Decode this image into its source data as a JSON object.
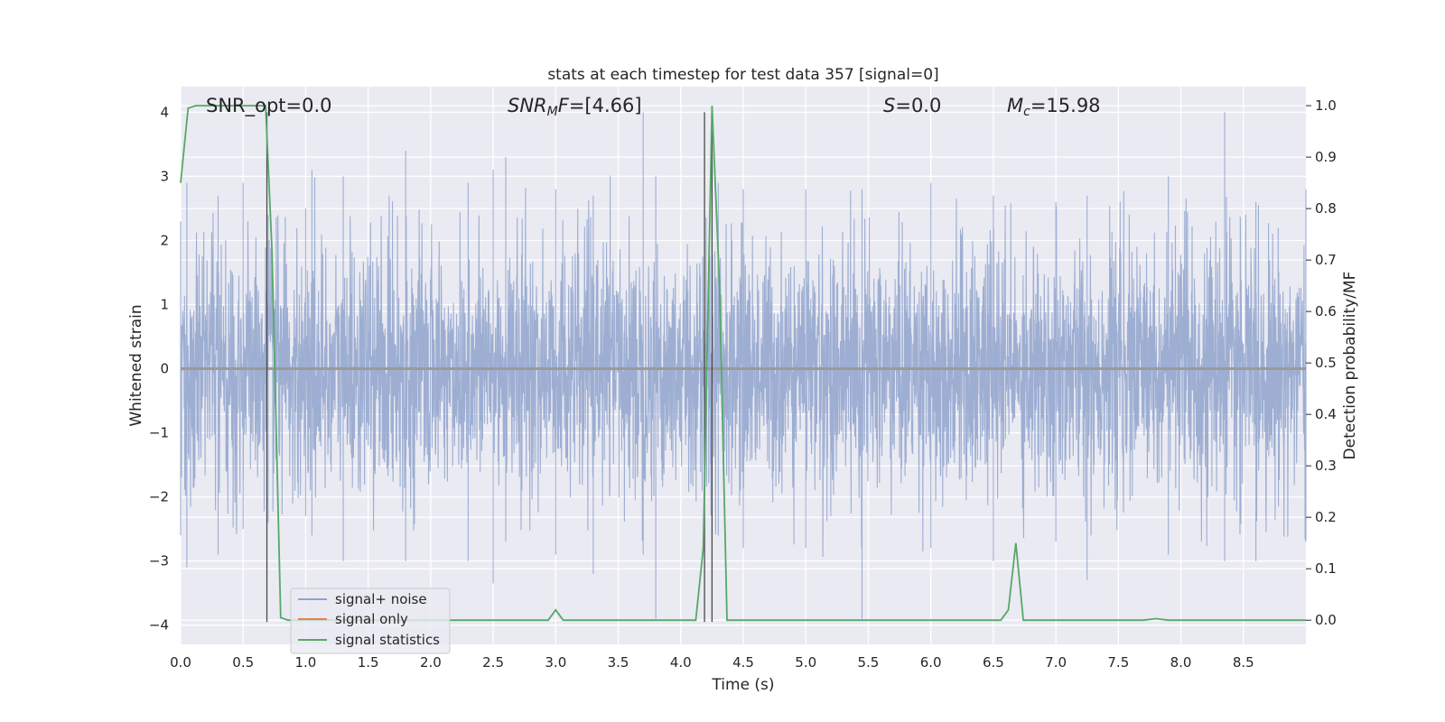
{
  "chart_data": {
    "type": "line",
    "title": "stats at each timestep for test data 357 [signal=0]",
    "xlabel": "Time (s)",
    "ylabel": "Whitened strain",
    "y2label": "Detection probability/MF",
    "xlim": [
      0.0,
      9.0
    ],
    "ylim": [
      -4.3,
      4.4
    ],
    "y2lim": [
      -0.047,
      1.037
    ],
    "xticks": [
      "0.0",
      "0.5",
      "1.0",
      "1.5",
      "2.0",
      "2.5",
      "3.0",
      "3.5",
      "4.0",
      "4.5",
      "5.0",
      "5.5",
      "6.0",
      "6.5",
      "7.0",
      "7.5",
      "8.0",
      "8.5"
    ],
    "yticks": [
      "4",
      "3",
      "2",
      "1",
      "0",
      "−1",
      "−2",
      "−3",
      "−4"
    ],
    "y2ticks": [
      "1.0",
      "0.9",
      "0.8",
      "0.7",
      "0.6",
      "0.5",
      "0.4",
      "0.3",
      "0.2",
      "0.1",
      "0.0"
    ],
    "grid": true,
    "legend_position": "lower-left",
    "annotations": {
      "snr_opt": "SNR_opt=0.0",
      "snr_mf_main": "SNR",
      "snr_mf_sub": "M",
      "snr_mf_rest": "F=[4.66]",
      "s_it": "S",
      "s_rest": "=0.0",
      "mc_main": "M",
      "mc_sub": "c",
      "mc_rest": "=15.98"
    },
    "series": [
      {
        "name": "signal+ noise",
        "color": "#8fa3cc",
        "description_values": "dense whitened noise, approx ±2.5 with spikes to ±4",
        "envelope": [
          [
            0.0,
            2.3,
            -2.6
          ],
          [
            0.05,
            2.9,
            -3.1
          ],
          [
            0.3,
            2.7,
            -2.9
          ],
          [
            0.5,
            2.9,
            -2.5
          ],
          [
            0.7,
            2.4,
            -2.4
          ],
          [
            1.0,
            2.5,
            -2.3
          ],
          [
            1.05,
            3.1,
            -2.6
          ],
          [
            1.3,
            3.0,
            -3.0
          ],
          [
            1.8,
            3.4,
            -3.0
          ],
          [
            2.3,
            2.9,
            -3.0
          ],
          [
            2.5,
            3.1,
            -3.35
          ],
          [
            2.6,
            3.3,
            -2.7
          ],
          [
            3.0,
            2.8,
            -2.9
          ],
          [
            3.3,
            2.7,
            -3.2
          ],
          [
            3.7,
            4.0,
            -2.9
          ],
          [
            3.8,
            3.0,
            -3.9
          ],
          [
            4.3,
            2.9,
            -2.6
          ],
          [
            4.5,
            2.8,
            -2.8
          ],
          [
            5.0,
            2.8,
            -2.8
          ],
          [
            5.45,
            2.8,
            -3.9
          ],
          [
            6.0,
            2.9,
            -2.8
          ],
          [
            6.5,
            2.7,
            -3.0
          ],
          [
            7.0,
            2.6,
            -2.7
          ],
          [
            7.25,
            2.7,
            -3.3
          ],
          [
            7.9,
            3.0,
            -2.9
          ],
          [
            8.35,
            4.0,
            -3.0
          ],
          [
            8.6,
            2.6,
            -3.0
          ],
          [
            9.0,
            2.8,
            -2.7
          ]
        ]
      },
      {
        "name": "signal only",
        "color": "#dd8452",
        "values_note": "zero signal",
        "points": [
          [
            0.0,
            0.0
          ],
          [
            9.0,
            0.0
          ]
        ]
      },
      {
        "name": "signal statistics",
        "color": "#55a868",
        "axis": "right",
        "points": [
          [
            0.0,
            0.85
          ],
          [
            0.06,
            0.995
          ],
          [
            0.12,
            1.0
          ],
          [
            0.68,
            1.0
          ],
          [
            0.73,
            0.72
          ],
          [
            0.8,
            0.005
          ],
          [
            0.86,
            0.0
          ],
          [
            2.94,
            0.0
          ],
          [
            3.0,
            0.02
          ],
          [
            3.06,
            0.0
          ],
          [
            4.12,
            0.0
          ],
          [
            4.18,
            0.14
          ],
          [
            4.25,
            1.0
          ],
          [
            4.31,
            0.65
          ],
          [
            4.37,
            0.0
          ],
          [
            6.56,
            0.0
          ],
          [
            6.62,
            0.02
          ],
          [
            6.68,
            0.15
          ],
          [
            6.74,
            0.0
          ],
          [
            7.7,
            0.0
          ],
          [
            7.8,
            0.003
          ],
          [
            7.9,
            0.0
          ],
          [
            9.0,
            0.0
          ]
        ]
      }
    ],
    "vlines": [
      0.69,
      4.19,
      4.25
    ]
  }
}
